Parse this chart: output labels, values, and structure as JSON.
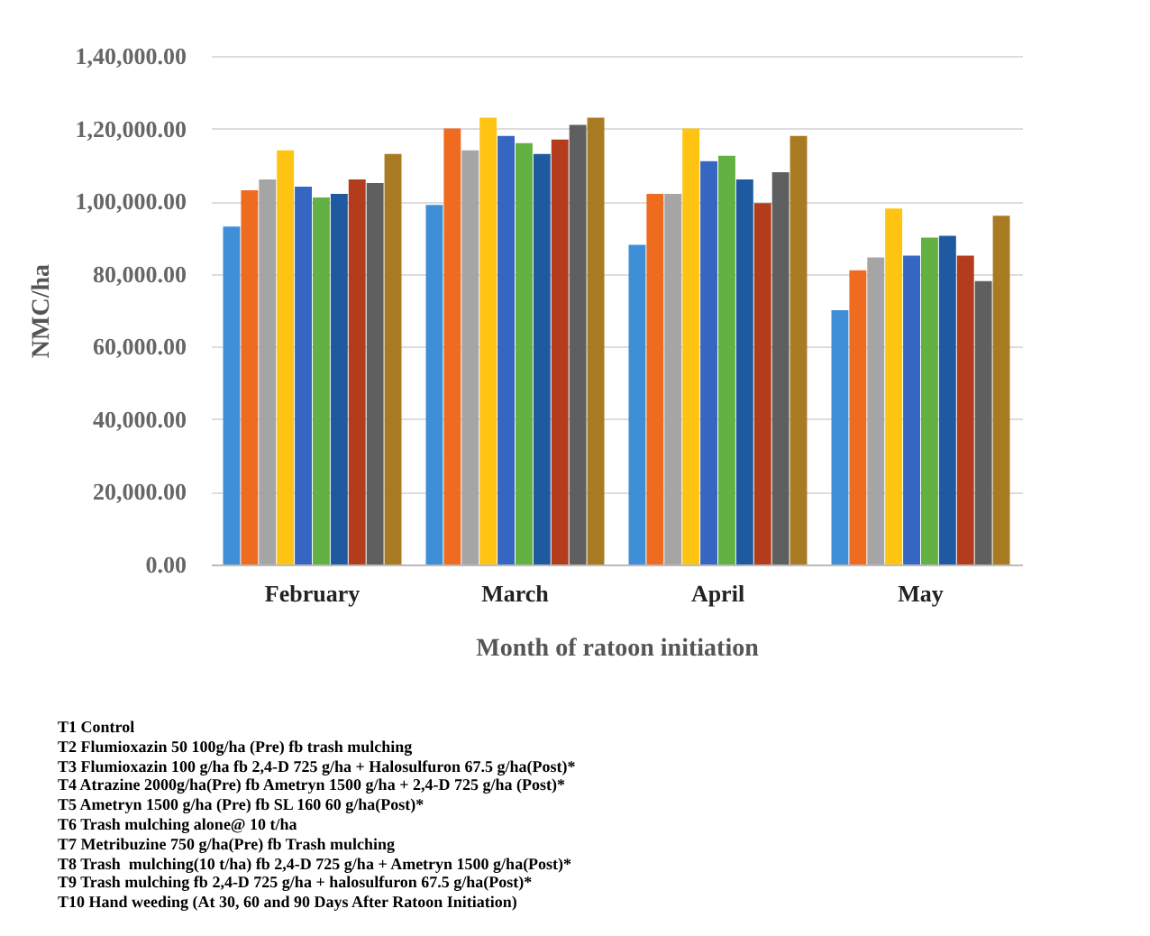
{
  "chart_data": {
    "type": "bar",
    "xlabel": "Month of ratoon  initiation",
    "ylabel": "NMC/ha",
    "categories": [
      "February",
      "March",
      "April",
      "May"
    ],
    "series": [
      {
        "color": "#3f8fd6",
        "values": [
          93000,
          99000,
          88000,
          70000
        ]
      },
      {
        "color": "#ee6b1f",
        "values": [
          103000,
          120000,
          102000,
          81000
        ]
      },
      {
        "color": "#a5a5a5",
        "values": [
          106000,
          114000,
          102000,
          84500
        ]
      },
      {
        "color": "#ffc312",
        "values": [
          114000,
          123000,
          120000,
          98000
        ]
      },
      {
        "color": "#3566c2",
        "values": [
          104000,
          118000,
          111000,
          85000
        ]
      },
      {
        "color": "#63b043",
        "values": [
          101000,
          116000,
          112500,
          90000
        ]
      },
      {
        "color": "#1f5aa0",
        "values": [
          102000,
          113000,
          106000,
          90500
        ]
      },
      {
        "color": "#b23c1c",
        "values": [
          106000,
          117000,
          99500,
          85000
        ]
      },
      {
        "color": "#5f5f5f",
        "values": [
          105000,
          121000,
          108000,
          78000
        ]
      },
      {
        "color": "#a87a22",
        "values": [
          113000,
          123000,
          118000,
          96000
        ]
      }
    ],
    "ylim": [
      0,
      140000
    ],
    "yticks": [
      {
        "value": 0,
        "label": "0.00"
      },
      {
        "value": 20000,
        "label": "20,000.00"
      },
      {
        "value": 40000,
        "label": "40,000.00"
      },
      {
        "value": 60000,
        "label": "60,000.00"
      },
      {
        "value": 80000,
        "label": "80,000.00"
      },
      {
        "value": 100000,
        "label": "1,00,000.00"
      },
      {
        "value": 120000,
        "label": "1,20,000.00"
      },
      {
        "value": 140000,
        "label": "1,40,000.00"
      }
    ],
    "grid": "y",
    "annotations": [
      "T1 Control",
      "T2 Flumioxazin 50 100g/ha (Pre) fb trash mulching",
      "T3 Flumioxazin 100 g/ha fb 2,4-D 725 g/ha + Halosulfuron 67.5 g/ha(Post)*",
      "T4 Atrazine 2000g/ha(Pre) fb Ametryn 1500 g/ha + 2,4-D 725 g/ha (Post)*",
      "T5 Ametryn 1500 g/ha (Pre) fb SL 160 60 g/ha(Post)*",
      "T6 Trash mulching alone@ 10 t/ha",
      "T7 Metribuzine 750 g/ha(Pre) fb Trash mulching",
      "T8 Trash  mulching(10 t/ha) fb 2,4-D 725 g/ha + Ametryn 1500 g/ha(Post)*",
      "T9 Trash mulching fb 2,4-D 725 g/ha + halosulfuron 67.5 g/ha(Post)*",
      "T10 Hand weeding (At 30, 60 and 90 Days After Ratoon Initiation)"
    ]
  }
}
